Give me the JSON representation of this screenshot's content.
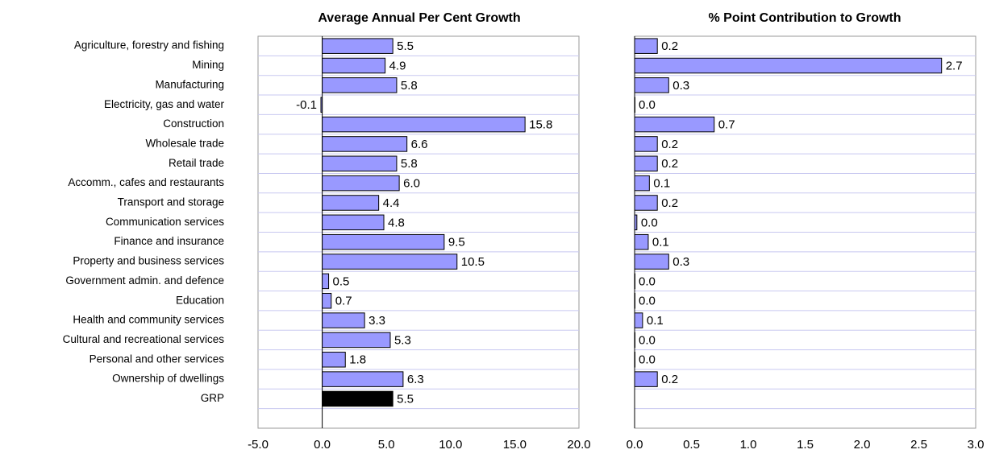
{
  "chart_data": [
    {
      "type": "bar",
      "orientation": "horizontal",
      "title": "Average Annual Per Cent Growth",
      "categories": [
        "Agriculture, forestry and fishing",
        "Mining",
        "Manufacturing",
        "Electricity, gas and water",
        "Construction",
        "Wholesale trade",
        "Retail trade",
        "Accomm., cafes and restaurants",
        "Transport and storage",
        "Communication services",
        "Finance and insurance",
        "Property and business services",
        "Government admin. and defence",
        "Education",
        "Health and community services",
        "Cultural and recreational services",
        "Personal and other services",
        "Ownership of dwellings",
        "GRP"
      ],
      "values": [
        5.5,
        4.9,
        5.8,
        -0.1,
        15.8,
        6.6,
        5.8,
        6.0,
        4.4,
        4.8,
        9.5,
        10.5,
        0.5,
        0.7,
        3.3,
        5.3,
        1.8,
        6.3,
        5.5
      ],
      "value_labels": [
        "5.5",
        "4.9",
        "5.8",
        "-0.1",
        "15.8",
        "6.6",
        "5.8",
        "6.0",
        "4.4",
        "4.8",
        "9.5",
        "10.5",
        "0.5",
        "0.7",
        "3.3",
        "5.3",
        "1.8",
        "6.3",
        "5.5"
      ],
      "colors": [
        "#9999ff",
        "#9999ff",
        "#9999ff",
        "#9999ff",
        "#9999ff",
        "#9999ff",
        "#9999ff",
        "#9999ff",
        "#9999ff",
        "#9999ff",
        "#9999ff",
        "#9999ff",
        "#9999ff",
        "#9999ff",
        "#9999ff",
        "#9999ff",
        "#9999ff",
        "#9999ff",
        "#000000"
      ],
      "xlim": [
        -5,
        20
      ],
      "xticks": [
        {
          "value": -5,
          "label": "-5.0"
        },
        {
          "value": 0,
          "label": "0.0"
        },
        {
          "value": 5,
          "label": "5.0"
        },
        {
          "value": 10,
          "label": "10.0"
        },
        {
          "value": 15,
          "label": "15.0"
        },
        {
          "value": 20,
          "label": "20.0"
        }
      ]
    },
    {
      "type": "bar",
      "orientation": "horizontal",
      "title": "% Point Contribution to Growth",
      "values": [
        0.2,
        2.7,
        0.3,
        0.0,
        0.7,
        0.2,
        0.2,
        0.13,
        0.2,
        0.02,
        0.12,
        0.3,
        0.0,
        0.0,
        0.07,
        0.0,
        0.0,
        0.2,
        null
      ],
      "value_labels": [
        "0.2",
        "2.7",
        "0.3",
        "0.0",
        "0.7",
        "0.2",
        "0.2",
        "0.1",
        "0.2",
        "0.0",
        "0.1",
        "0.3",
        "0.0",
        "0.0",
        "0.1",
        "0.0",
        "0.0",
        "0.2",
        null
      ],
      "color": "#9999ff",
      "xlim": [
        0,
        3
      ],
      "xticks": [
        {
          "value": 0,
          "label": "0.0"
        },
        {
          "value": 0.5,
          "label": "0.5"
        },
        {
          "value": 1,
          "label": "1.0"
        },
        {
          "value": 1.5,
          "label": "1.5"
        },
        {
          "value": 2,
          "label": "2.0"
        },
        {
          "value": 2.5,
          "label": "2.5"
        },
        {
          "value": 3,
          "label": "3.0"
        }
      ]
    }
  ]
}
